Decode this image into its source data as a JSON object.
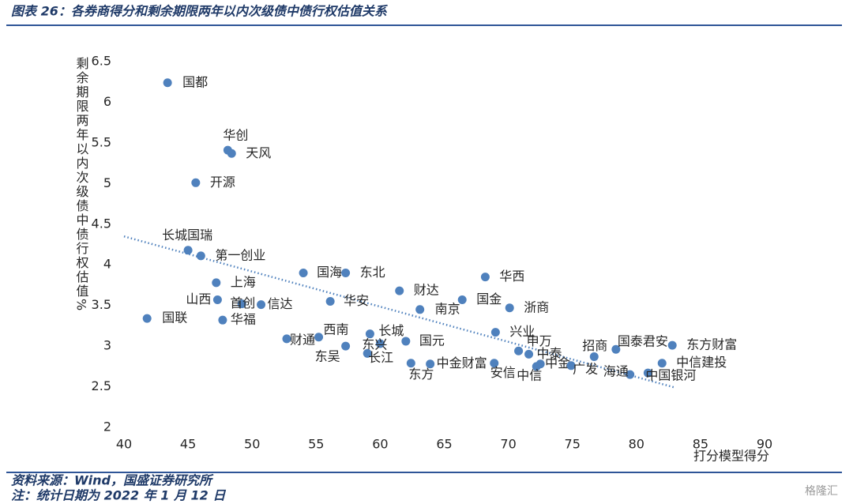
{
  "header": {
    "title": "图表 26：各券商得分和剩余期限两年以内次级债中债行权估值关系"
  },
  "chart_data": {
    "type": "scatter",
    "y_label": "剩余期限两年以内次级债中债行权估值%",
    "x_label": "打分模型得分",
    "labels": [
      "国都",
      "华创",
      "天风",
      "开源",
      "长城国瑞",
      "第一创业",
      "上海",
      "山西",
      "首创",
      "信达",
      "华福",
      "国联",
      "国海",
      "东北",
      "华安",
      "财达",
      "南京",
      "国金",
      "华西",
      "浙商",
      "财通",
      "西南",
      "东吴",
      "长城",
      "东兴",
      "国元",
      "长江",
      "东方",
      "中金财富",
      "兴业",
      "申万",
      "中泰",
      "安信",
      "中信",
      "中金",
      "广发",
      "海通",
      "中国银河",
      "招商",
      "国泰君安",
      "东方财富",
      "中信建投"
    ],
    "x": [
      43.4,
      48.1,
      48.4,
      45.6,
      45.0,
      46.0,
      47.2,
      47.3,
      49.2,
      50.7,
      47.7,
      41.8,
      54.0,
      57.3,
      56.1,
      61.5,
      63.1,
      66.4,
      68.2,
      70.1,
      52.7,
      55.2,
      57.3,
      59.2,
      60.0,
      62.0,
      59.0,
      62.4,
      63.9,
      69.0,
      70.8,
      71.6,
      68.9,
      72.2,
      72.5,
      74.9,
      79.5,
      80.9,
      76.7,
      78.4,
      82.8,
      82.0
    ],
    "values": [
      6.24,
      5.41,
      5.37,
      5.01,
      4.18,
      4.11,
      3.78,
      3.57,
      3.52,
      3.51,
      3.32,
      3.34,
      3.9,
      3.9,
      3.55,
      3.68,
      3.45,
      3.57,
      3.85,
      3.47,
      3.09,
      3.11,
      3.0,
      3.15,
      3.03,
      3.06,
      2.91,
      2.79,
      2.78,
      3.17,
      2.94,
      2.9,
      2.79,
      2.75,
      2.78,
      2.76,
      2.65,
      2.67,
      2.87,
      2.96,
      3.01,
      2.79
    ],
    "color": "#4f81bd",
    "trendline": {
      "x": [
        40,
        83
      ],
      "y": [
        4.35,
        2.49
      ],
      "color": "#4f81bd"
    },
    "xlim": [
      40,
      90
    ],
    "xticks": [
      40,
      45,
      50,
      55,
      60,
      65,
      70,
      75,
      80,
      85,
      90
    ],
    "ylim": [
      2,
      6.5
    ],
    "yticks": [
      2,
      2.5,
      3,
      3.5,
      4,
      4.5,
      5,
      5.5,
      6,
      6.5
    ]
  },
  "footer": {
    "source": "资料来源：Wind，国盛证券研究所",
    "note": "注：统计日期为 2022 年 1 月 12 日",
    "watermark": "格隆汇"
  }
}
